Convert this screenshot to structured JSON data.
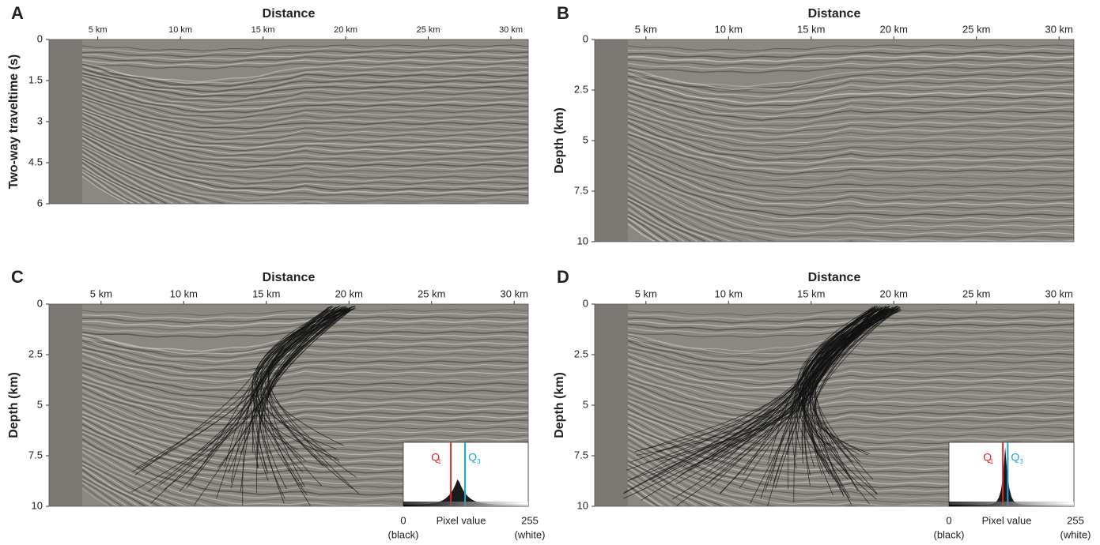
{
  "panels": [
    {
      "letter": "A",
      "x_title": "Distance",
      "y_title": "Two-way traveltime (s)",
      "xlim": [
        2.05,
        31.05
      ],
      "ylim": [
        0,
        6
      ],
      "xticks": [
        {
          "value": 5,
          "label": "5 km"
        },
        {
          "value": 10,
          "label": "10 km"
        },
        {
          "value": 15,
          "label": "15 km"
        },
        {
          "value": 20,
          "label": "20 km"
        },
        {
          "value": 25,
          "label": "25 km"
        },
        {
          "value": 30,
          "label": "30 km"
        }
      ],
      "yticks": [
        0,
        1.5,
        3,
        4.5,
        6
      ]
    },
    {
      "letter": "B",
      "x_title": "Distance",
      "y_title": "Depth (km)",
      "xlim": [
        1.9,
        30.9
      ],
      "ylim": [
        0,
        10
      ],
      "xticks": [
        {
          "value": 5,
          "label": "5 km"
        },
        {
          "value": 10,
          "label": "10 km"
        },
        {
          "value": 15,
          "label": "15 km"
        },
        {
          "value": 20,
          "label": "20 km"
        },
        {
          "value": 25,
          "label": "25 km"
        },
        {
          "value": 30,
          "label": "30 km"
        }
      ],
      "yticks": [
        0,
        2.5,
        5,
        7.5,
        10
      ]
    },
    {
      "letter": "C",
      "x_title": "Distance",
      "y_title": "Depth (km)",
      "xlim": [
        1.85,
        30.85
      ],
      "ylim": [
        0,
        10
      ],
      "xticks": [
        {
          "value": 5,
          "label": "5 km"
        },
        {
          "value": 10,
          "label": "10 km"
        },
        {
          "value": 15,
          "label": "15 km"
        },
        {
          "value": 20,
          "label": "20 km"
        },
        {
          "value": 25,
          "label": "25 km"
        },
        {
          "value": 30,
          "label": "30 km"
        }
      ],
      "yticks": [
        0,
        2.5,
        5,
        7.5,
        10
      ],
      "inset": {
        "x_title": "Pixel value",
        "xlim": [
          0,
          255
        ],
        "xticks": [
          0,
          255
        ],
        "left_note": "(black)",
        "right_note": "(white)",
        "q_letter": "Q",
        "q1_sub": "1",
        "q3_sub": "3",
        "q1": 97,
        "q3": 126
      }
    },
    {
      "letter": "D",
      "x_title": "Distance",
      "y_title": "Depth (km)",
      "xlim": [
        1.9,
        30.9
      ],
      "ylim": [
        0,
        10
      ],
      "xticks": [
        {
          "value": 5,
          "label": "5 km"
        },
        {
          "value": 10,
          "label": "10 km"
        },
        {
          "value": 15,
          "label": "15 km"
        },
        {
          "value": 20,
          "label": "20 km"
        },
        {
          "value": 25,
          "label": "25 km"
        },
        {
          "value": 30,
          "label": "30 km"
        }
      ],
      "yticks": [
        0,
        2.5,
        5,
        7.5,
        10
      ],
      "inset": {
        "x_title": "Pixel value",
        "xlim": [
          0,
          255
        ],
        "xticks": [
          0,
          255
        ],
        "left_note": "(black)",
        "right_note": "(white)",
        "q_letter": "Q",
        "q1_sub": "1",
        "q3_sub": "3",
        "q1": 110,
        "q3": 120
      }
    }
  ]
}
